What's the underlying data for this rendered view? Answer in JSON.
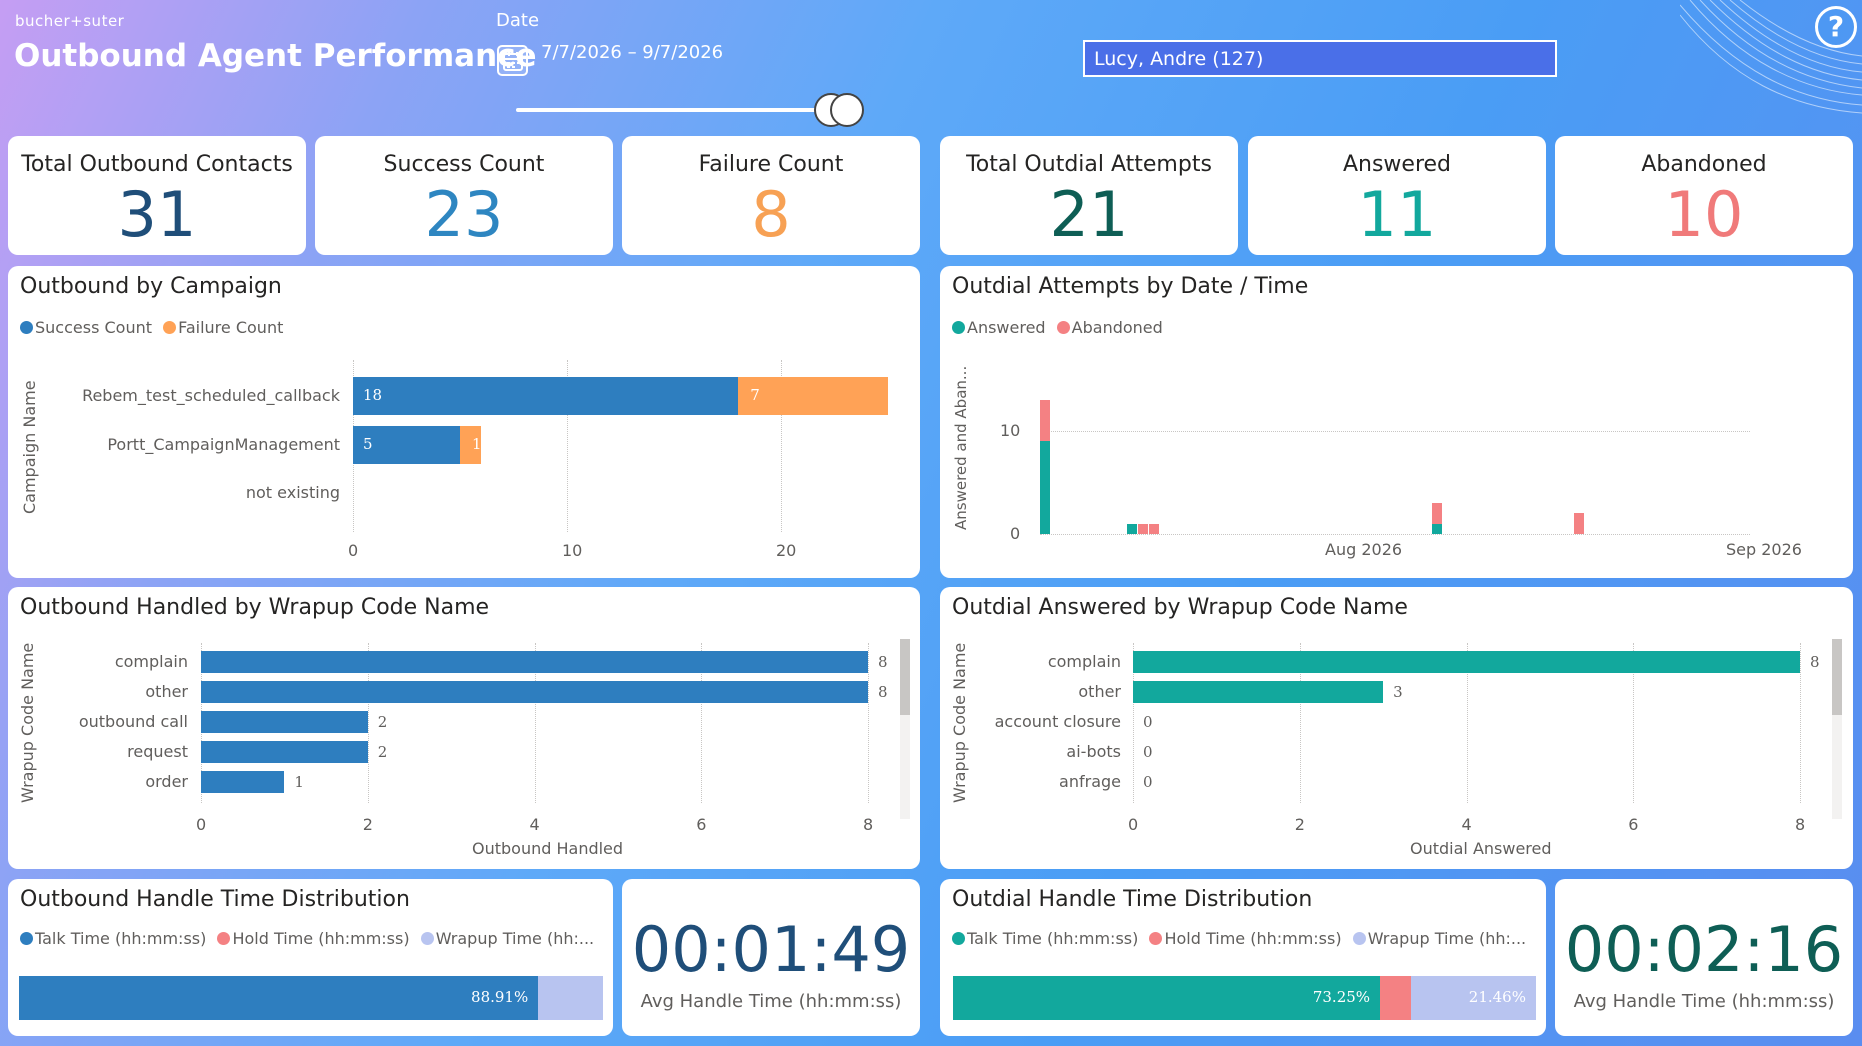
{
  "header": {
    "brand": "bucher+suter",
    "title": "Outbound Agent Performance",
    "date_label": "Date",
    "date_range": "7/7/2026 – 9/7/2026",
    "user_filter": "Lucy, Andre (127)"
  },
  "kpis": [
    {
      "label": "Total Outbound Contacts",
      "value": "31",
      "color": "#1f4e79"
    },
    {
      "label": "Success Count",
      "value": "23",
      "color": "#2e86c1"
    },
    {
      "label": "Failure Count",
      "value": "8",
      "color": "#f7a154"
    },
    {
      "label": "Total Outdial Attempts",
      "value": "21",
      "color": "#0e5e55"
    },
    {
      "label": "Answered",
      "value": "11",
      "color": "#12a89d"
    },
    {
      "label": "Abandoned",
      "value": "10",
      "color": "#f07a7a"
    }
  ],
  "campaign_chart": {
    "title": "Outbound by Campaign",
    "legend": [
      "Success Count",
      "Failure Count"
    ],
    "colors": [
      "#2e7ebf",
      "#ffa256"
    ],
    "ylabel": "Campaign Name",
    "categories": [
      "Rebem_test_scheduled_callback",
      "Portt_CampaignManagement",
      "not existing"
    ],
    "success": [
      18,
      5,
      0
    ],
    "failure": [
      7,
      1,
      0
    ],
    "success_labels": [
      "18",
      "5"
    ],
    "failure_labels": [
      "7",
      "1"
    ],
    "ticks": [
      "0",
      "10",
      "20"
    ],
    "xmax": 25
  },
  "outdial_chart": {
    "title": "Outdial Attempts by Date / Time",
    "legend": [
      "Answered",
      "Abandoned"
    ],
    "colors": [
      "#12a89d",
      "#f48183"
    ],
    "ylabel": "Answered and Aban...",
    "yticks": [
      "10",
      "0"
    ],
    "xticks": [
      "Aug 2026",
      "Sep 2026"
    ],
    "ymax": 13,
    "bars": [
      {
        "day": 0,
        "answered": 9,
        "abandoned": 4
      },
      {
        "day": 8,
        "answered": 1,
        "abandoned": 0
      },
      {
        "day": 9,
        "answered": 0,
        "abandoned": 1
      },
      {
        "day": 10,
        "answered": 0,
        "abandoned": 1
      },
      {
        "day": 36,
        "answered": 1,
        "abandoned": 2
      },
      {
        "day": 49,
        "answered": 0,
        "abandoned": 2
      }
    ]
  },
  "handled_chart": {
    "title": "Outbound Handled by Wrapup Code Name",
    "ylabel": "Wrapup Code Name",
    "xlabel": "Outbound Handled",
    "color": "#2e7ebf",
    "categories": [
      "complain",
      "other",
      "outbound call",
      "request",
      "order"
    ],
    "values": [
      8,
      8,
      2,
      2,
      1
    ],
    "value_labels": [
      "8",
      "8",
      "2",
      "2",
      "1"
    ],
    "ticks": [
      "0",
      "2",
      "4",
      "6",
      "8"
    ],
    "xmax": 8
  },
  "answered_chart": {
    "title": "Outdial Answered by Wrapup Code Name",
    "ylabel": "Wrapup Code Name",
    "xlabel": "Outdial Answered",
    "color": "#12a89d",
    "categories": [
      "complain",
      "other",
      "account closure",
      "ai-bots",
      "anfrage"
    ],
    "values": [
      8,
      3,
      0,
      0,
      0
    ],
    "value_labels": [
      "8",
      "3",
      "0",
      "0",
      "0"
    ],
    "ticks": [
      "0",
      "2",
      "4",
      "6",
      "8"
    ],
    "xmax": 8
  },
  "outbound_dist": {
    "title": "Outbound Handle Time Distribution",
    "legend": [
      "Talk Time (hh:mm:ss)",
      "Hold Time (hh:mm:ss)",
      "Wrapup Time (hh:..."
    ],
    "colors": [
      "#2e7ebf",
      "#f48183",
      "#b8c4f0"
    ],
    "segments": [
      88.91,
      0,
      11.09
    ],
    "labels": [
      "88.91%",
      "",
      ""
    ]
  },
  "outdial_dist": {
    "title": "Outdial Handle Time Distribution",
    "legend": [
      "Talk Time (hh:mm:ss)",
      "Hold Time (hh:mm:ss)",
      "Wrapup Time (hh:..."
    ],
    "colors": [
      "#12a89d",
      "#f48183",
      "#b8c4f0"
    ],
    "segments": [
      73.25,
      5.29,
      21.46
    ],
    "labels": [
      "73.25%",
      "",
      "21.46%"
    ]
  },
  "avg_outbound": {
    "value": "00:01:49",
    "label": "Avg Handle Time (hh:mm:ss)",
    "color": "#1f4e79"
  },
  "avg_outdial": {
    "value": "00:02:16",
    "label": "Avg Handle Time (hh:mm:ss)",
    "color": "#0e5e55"
  }
}
